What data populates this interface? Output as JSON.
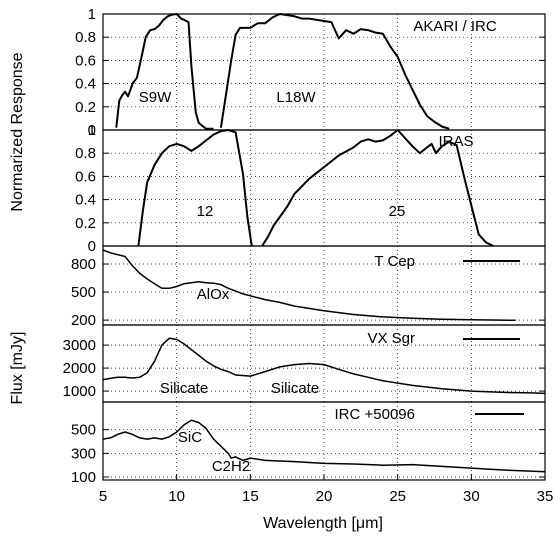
{
  "chart_data": [
    {
      "type": "line",
      "title": "AKARI / IRC",
      "ylabel": "Normarized Response",
      "ylim": [
        0,
        1
      ],
      "yticks": [
        "0",
        "0.2",
        "0.4",
        "0.6",
        "0.8",
        "1"
      ],
      "band_labels": [
        "S9W",
        "L18W"
      ],
      "series": [
        {
          "name": "S9W",
          "x": [
            5.9,
            6.1,
            6.3,
            6.5,
            6.7,
            6.9,
            7.0,
            7.3,
            7.6,
            7.9,
            8.2,
            8.5,
            8.8,
            9.1,
            9.4,
            9.7,
            10.0,
            10.3,
            10.5,
            10.8,
            11.0,
            11.3,
            11.5,
            11.8,
            12.0,
            12.5
          ],
          "y": [
            0.02,
            0.25,
            0.3,
            0.33,
            0.29,
            0.36,
            0.4,
            0.45,
            0.62,
            0.8,
            0.86,
            0.87,
            0.9,
            0.95,
            0.98,
            0.995,
            1.0,
            0.96,
            0.95,
            0.93,
            0.55,
            0.15,
            0.06,
            0.03,
            0.01,
            0.01
          ]
        },
        {
          "name": "L18W",
          "x": [
            13.0,
            13.4,
            13.7,
            14.0,
            14.3,
            14.6,
            15.0,
            15.5,
            16.0,
            16.5,
            17.0,
            17.5,
            18.0,
            18.5,
            19.0,
            19.5,
            20.0,
            20.5,
            21.0,
            21.5,
            22.0,
            22.5,
            23.0,
            23.5,
            24.0,
            24.5,
            25.0,
            25.5,
            26.0,
            26.5,
            27.0,
            27.5,
            28.0,
            28.5
          ],
          "y": [
            0.02,
            0.35,
            0.6,
            0.82,
            0.88,
            0.88,
            0.88,
            0.92,
            0.92,
            0.97,
            1.0,
            0.99,
            0.98,
            0.96,
            0.96,
            0.95,
            0.94,
            0.93,
            0.79,
            0.86,
            0.83,
            0.87,
            0.86,
            0.84,
            0.83,
            0.72,
            0.63,
            0.48,
            0.35,
            0.22,
            0.12,
            0.07,
            0.03,
            0.01
          ]
        }
      ]
    },
    {
      "type": "line",
      "title": "IRAS",
      "ylim": [
        0,
        1
      ],
      "yticks": [
        "0",
        "0.2",
        "0.4",
        "0.6",
        "0.8",
        "1"
      ],
      "band_labels": [
        "12",
        "25"
      ],
      "series": [
        {
          "name": "12",
          "x": [
            7.4,
            7.7,
            8.0,
            8.5,
            9.0,
            9.5,
            10.0,
            10.5,
            11.0,
            11.5,
            12.0,
            12.5,
            13.0,
            13.5,
            14.0,
            14.5,
            14.8,
            15.1
          ],
          "y": [
            0.0,
            0.3,
            0.55,
            0.7,
            0.8,
            0.86,
            0.88,
            0.86,
            0.82,
            0.86,
            0.91,
            0.96,
            0.99,
            1.0,
            0.98,
            0.62,
            0.25,
            0.0
          ]
        },
        {
          "name": "25",
          "x": [
            15.8,
            16.2,
            16.6,
            17.0,
            17.5,
            18.0,
            19.0,
            20.0,
            21.0,
            22.0,
            22.5,
            23.0,
            23.5,
            24.0,
            24.5,
            25.0,
            25.5,
            26.0,
            26.5,
            27.0,
            27.3,
            27.6,
            28.0,
            28.5,
            29.0,
            29.5,
            30.0,
            30.5,
            31.0,
            31.5
          ],
          "y": [
            0.0,
            0.08,
            0.18,
            0.25,
            0.34,
            0.45,
            0.58,
            0.68,
            0.78,
            0.85,
            0.9,
            0.92,
            0.9,
            0.91,
            0.95,
            1.0,
            0.93,
            0.86,
            0.8,
            0.85,
            0.88,
            0.8,
            0.86,
            0.9,
            0.87,
            0.6,
            0.35,
            0.1,
            0.03,
            0.0
          ]
        }
      ]
    },
    {
      "type": "line",
      "title": "T Cep",
      "ylim": [
        180,
        950
      ],
      "yticks": [
        "200",
        "500",
        "800"
      ],
      "annotations": [
        "AlOx"
      ],
      "series": [
        {
          "name": "T Cep",
          "x": [
            5.0,
            5.5,
            6.0,
            6.5,
            7.0,
            7.5,
            8.0,
            8.5,
            9.0,
            9.5,
            10.0,
            10.5,
            11.0,
            11.5,
            12.0,
            12.5,
            13.0,
            13.5,
            14.0,
            14.5,
            15.0,
            16.0,
            17.0,
            18.0,
            20.0,
            22.0,
            24.0,
            26.0,
            28.0,
            30.0,
            32.0,
            33.0
          ],
          "y": [
            950,
            920,
            900,
            880,
            780,
            700,
            640,
            590,
            540,
            540,
            560,
            590,
            600,
            610,
            600,
            595,
            580,
            540,
            510,
            480,
            460,
            420,
            390,
            350,
            300,
            260,
            235,
            220,
            210,
            205,
            200,
            198
          ]
        }
      ]
    },
    {
      "type": "line",
      "title": "VX Sgr",
      "ylim": [
        700,
        3700
      ],
      "yticks": [
        "1000",
        "2000",
        "3000"
      ],
      "annotations": [
        "Silicate",
        "Silicate"
      ],
      "series": [
        {
          "name": "VX Sgr",
          "x": [
            5.0,
            5.5,
            6.0,
            6.5,
            7.0,
            7.5,
            8.0,
            8.5,
            9.0,
            9.5,
            10.0,
            10.5,
            11.0,
            11.5,
            12.0,
            12.5,
            13.0,
            13.5,
            14.0,
            15.0,
            16.0,
            17.0,
            18.0,
            19.0,
            20.0,
            21.0,
            22.0,
            23.0,
            24.0,
            26.0,
            28.0,
            30.0,
            32.0,
            34.0,
            35.0
          ],
          "y": [
            1500,
            1550,
            1600,
            1600,
            1570,
            1600,
            1800,
            2300,
            3000,
            3300,
            3250,
            3050,
            2800,
            2550,
            2300,
            2100,
            1950,
            1850,
            1700,
            1650,
            1850,
            2050,
            2150,
            2200,
            2150,
            1950,
            1750,
            1600,
            1450,
            1250,
            1100,
            1000,
            950,
            920,
            900
          ]
        }
      ]
    },
    {
      "type": "line",
      "title": "IRC +50096",
      "xlabel": "Wavelength [μm]",
      "ylim": [
        100,
        700
      ],
      "yticks": [
        "100",
        "300",
        "500"
      ],
      "xticks": [
        "5",
        "10",
        "15",
        "20",
        "25",
        "30",
        "35"
      ],
      "annotations": [
        "SiC",
        "C2H2"
      ],
      "series": [
        {
          "name": "IRC +50096",
          "x": [
            5.0,
            5.5,
            6.0,
            6.5,
            7.0,
            7.5,
            8.0,
            8.5,
            9.0,
            9.5,
            10.0,
            10.5,
            11.0,
            11.5,
            12.0,
            12.5,
            13.0,
            13.5,
            13.7,
            14.0,
            14.5,
            15.0,
            16.0,
            18.0,
            20.0,
            22.0,
            24.0,
            26.0,
            28.0,
            30.0,
            32.0,
            34.0,
            35.0
          ],
          "y": [
            420,
            430,
            460,
            480,
            460,
            430,
            420,
            430,
            420,
            440,
            480,
            540,
            580,
            560,
            510,
            420,
            360,
            300,
            260,
            270,
            240,
            260,
            240,
            230,
            215,
            210,
            200,
            205,
            190,
            175,
            160,
            150,
            145
          ]
        }
      ]
    }
  ],
  "shared": {
    "ylabel_top": "Normarized Response",
    "ylabel_bottom": "Flux [mJy]",
    "xlim": [
      5,
      35
    ]
  }
}
